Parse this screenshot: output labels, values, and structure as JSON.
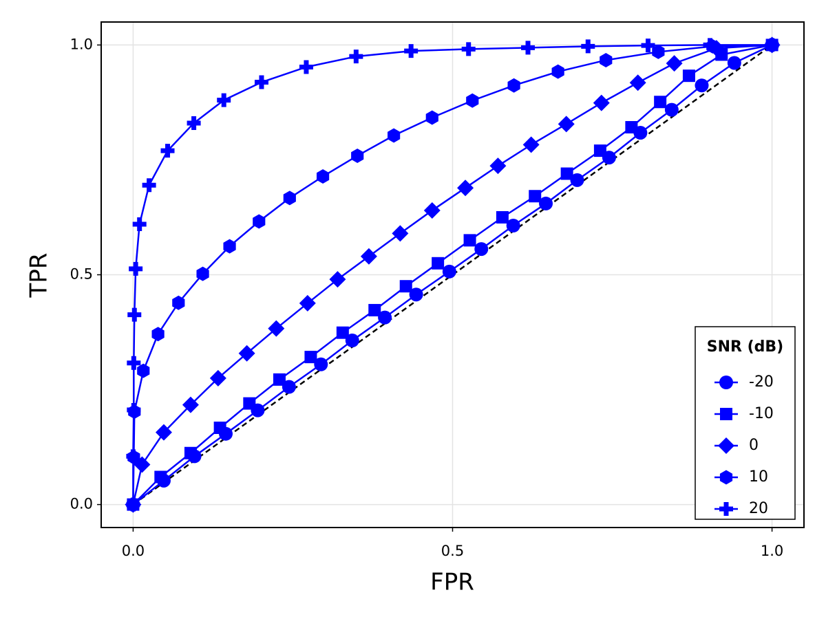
{
  "chart_data": {
    "type": "line",
    "xlabel": "FPR",
    "ylabel": "TPR",
    "xlim": [
      -0.05,
      1.05
    ],
    "ylim": [
      -0.05,
      1.05
    ],
    "xticks": [
      {
        "value": 0,
        "label": "0.0"
      },
      {
        "value": 0.5,
        "label": "0.5"
      },
      {
        "value": 1,
        "label": "1.0"
      }
    ],
    "yticks": [
      {
        "value": 0,
        "label": "0.0"
      },
      {
        "value": 0.5,
        "label": "0.5"
      },
      {
        "value": 1,
        "label": "1.0"
      }
    ],
    "grid": true,
    "legend": {
      "title": "SNR (dB)",
      "position": "lower right"
    },
    "reference_line": {
      "x": [
        0,
        1
      ],
      "y": [
        0,
        1
      ],
      "color": "#000000",
      "style": "dashed"
    },
    "series": [
      {
        "name": "-20",
        "color": "#0000ff",
        "marker": "circle",
        "x": [
          0,
          0.048,
          0.096,
          0.145,
          0.195,
          0.244,
          0.294,
          0.343,
          0.394,
          0.443,
          0.495,
          0.545,
          0.595,
          0.646,
          0.695,
          0.745,
          0.794,
          0.843,
          0.89,
          0.941,
          1
        ],
        "y": [
          0,
          0.052,
          0.105,
          0.154,
          0.205,
          0.256,
          0.305,
          0.357,
          0.407,
          0.457,
          0.507,
          0.556,
          0.607,
          0.655,
          0.706,
          0.755,
          0.809,
          0.859,
          0.912,
          0.961,
          1
        ]
      },
      {
        "name": "-10",
        "color": "#0000ff",
        "marker": "square",
        "x": [
          0,
          0.043,
          0.09,
          0.136,
          0.182,
          0.229,
          0.278,
          0.328,
          0.378,
          0.427,
          0.477,
          0.527,
          0.578,
          0.629,
          0.679,
          0.731,
          0.78,
          0.825,
          0.87,
          0.921,
          1
        ],
        "y": [
          0,
          0.06,
          0.112,
          0.167,
          0.22,
          0.272,
          0.321,
          0.374,
          0.423,
          0.475,
          0.525,
          0.575,
          0.625,
          0.671,
          0.72,
          0.77,
          0.821,
          0.876,
          0.933,
          0.979,
          1
        ]
      },
      {
        "name": "0",
        "color": "#0000ff",
        "marker": "diamond",
        "x": [
          0,
          0.014,
          0.048,
          0.09,
          0.133,
          0.178,
          0.224,
          0.273,
          0.32,
          0.369,
          0.418,
          0.468,
          0.52,
          0.571,
          0.623,
          0.678,
          0.733,
          0.79,
          0.847,
          0.913,
          1
        ],
        "y": [
          0,
          0.087,
          0.157,
          0.217,
          0.275,
          0.329,
          0.383,
          0.438,
          0.49,
          0.54,
          0.59,
          0.64,
          0.689,
          0.737,
          0.783,
          0.828,
          0.874,
          0.918,
          0.96,
          0.993,
          1
        ]
      },
      {
        "name": "10",
        "color": "#0000ff",
        "marker": "hexagon",
        "x": [
          0,
          0.001,
          0.002,
          0.016,
          0.039,
          0.071,
          0.109,
          0.151,
          0.197,
          0.245,
          0.297,
          0.351,
          0.408,
          0.468,
          0.531,
          0.596,
          0.665,
          0.74,
          0.822,
          0.907,
          1
        ],
        "y": [
          0,
          0.103,
          0.202,
          0.291,
          0.371,
          0.439,
          0.502,
          0.562,
          0.616,
          0.667,
          0.714,
          0.759,
          0.803,
          0.842,
          0.879,
          0.912,
          0.942,
          0.967,
          0.985,
          0.997,
          1
        ]
      },
      {
        "name": "20",
        "color": "#0000ff",
        "marker": "plus",
        "x": [
          0,
          0.0,
          0.001,
          0.001,
          0.002,
          0.004,
          0.01,
          0.025,
          0.054,
          0.095,
          0.142,
          0.201,
          0.271,
          0.349,
          0.435,
          0.525,
          0.618,
          0.712,
          0.806,
          0.903,
          1
        ],
        "y": [
          0,
          0.105,
          0.206,
          0.308,
          0.413,
          0.513,
          0.61,
          0.695,
          0.77,
          0.83,
          0.88,
          0.919,
          0.952,
          0.975,
          0.987,
          0.991,
          0.994,
          0.997,
          0.999,
          1.0,
          1
        ]
      }
    ]
  }
}
